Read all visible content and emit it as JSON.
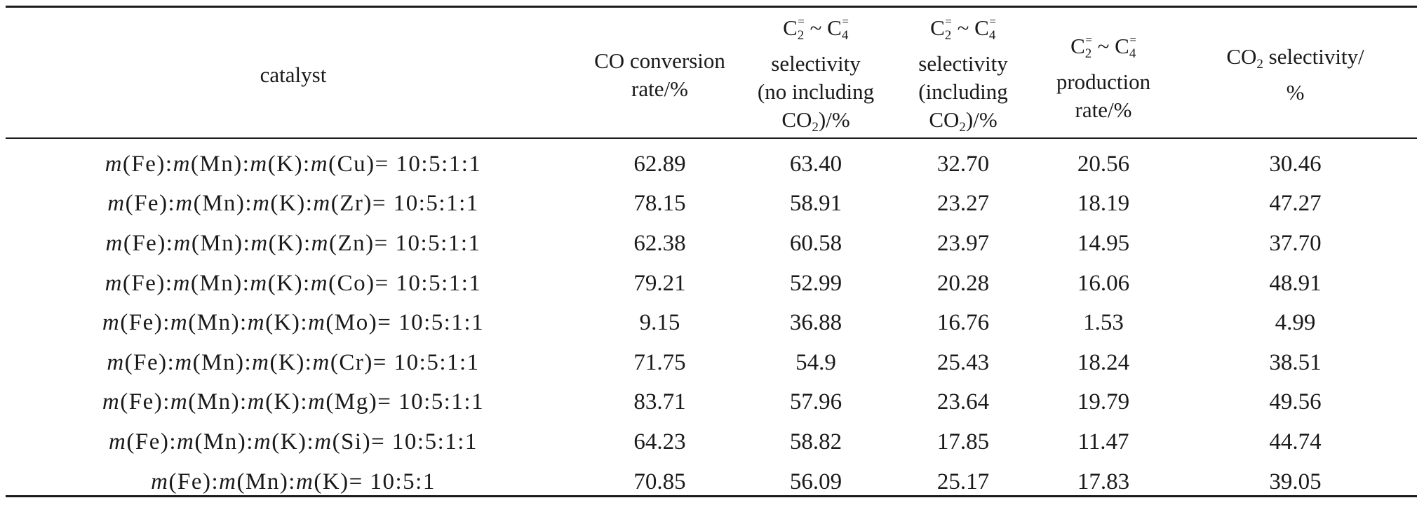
{
  "header": {
    "catalyst": "catalyst",
    "co_conversion": [
      "CO conversion",
      "rate/%"
    ],
    "sel_no_co2": {
      "formula_c2": "C",
      "sub2": "2",
      "sup_eq": "=",
      "tilde": "~",
      "formula_c4": "C",
      "sub4": "4",
      "lines": [
        "selectivity",
        "(no including",
        "CO",
        "2",
        ")/%"
      ]
    },
    "sel_inc_co2": {
      "lines": [
        "selectivity",
        "(including",
        "CO",
        "2",
        ")/%"
      ]
    },
    "production": {
      "lines": [
        "production",
        "rate/%"
      ]
    },
    "co2_sel": [
      "CO",
      "2",
      " selectivity/",
      "%"
    ]
  },
  "rows": [
    {
      "catalyst": [
        "m",
        "(Fe):",
        "m",
        "(Mn):",
        "m",
        "(K):",
        "m",
        "(Cu)= 10:5:1:1"
      ],
      "co_conv": "62.89",
      "sel_no": "63.40",
      "sel_inc": "32.70",
      "prod": "20.56",
      "co2": "30.46"
    },
    {
      "catalyst": [
        "m",
        "(Fe):",
        "m",
        "(Mn):",
        "m",
        "(K):",
        "m",
        "(Zr)= 10:5:1:1"
      ],
      "co_conv": "78.15",
      "sel_no": "58.91",
      "sel_inc": "23.27",
      "prod": "18.19",
      "co2": "47.27"
    },
    {
      "catalyst": [
        "m",
        "(Fe):",
        "m",
        "(Mn):",
        "m",
        "(K):",
        "m",
        "(Zn)= 10:5:1:1"
      ],
      "co_conv": "62.38",
      "sel_no": "60.58",
      "sel_inc": "23.97",
      "prod": "14.95",
      "co2": "37.70"
    },
    {
      "catalyst": [
        "m",
        "(Fe):",
        "m",
        "(Mn):",
        "m",
        "(K):",
        "m",
        "(Co)= 10:5:1:1"
      ],
      "co_conv": "79.21",
      "sel_no": "52.99",
      "sel_inc": "20.28",
      "prod": "16.06",
      "co2": "48.91"
    },
    {
      "catalyst": [
        "m",
        "(Fe):",
        "m",
        "(Mn):",
        "m",
        "(K):",
        "m",
        "(Mo)= 10:5:1:1"
      ],
      "co_conv": "9.15",
      "sel_no": "36.88",
      "sel_inc": "16.76",
      "prod": "1.53",
      "co2": "4.99"
    },
    {
      "catalyst": [
        "m",
        "(Fe):",
        "m",
        "(Mn):",
        "m",
        "(K):",
        "m",
        "(Cr)= 10:5:1:1"
      ],
      "co_conv": "71.75",
      "sel_no": "54.9",
      "sel_inc": "25.43",
      "prod": "18.24",
      "co2": "38.51"
    },
    {
      "catalyst": [
        "m",
        "(Fe):",
        "m",
        "(Mn):",
        "m",
        "(K):",
        "m",
        "(Mg)= 10:5:1:1"
      ],
      "co_conv": "83.71",
      "sel_no": "57.96",
      "sel_inc": "23.64",
      "prod": "19.79",
      "co2": "49.56"
    },
    {
      "catalyst": [
        "m",
        "(Fe):",
        "m",
        "(Mn):",
        "m",
        "(K):",
        "m",
        "(Si)= 10:5:1:1"
      ],
      "co_conv": "64.23",
      "sel_no": "58.82",
      "sel_inc": "17.85",
      "prod": "11.47",
      "co2": "44.74"
    },
    {
      "catalyst": [
        "m",
        "(Fe):",
        "m",
        "(Mn):",
        "m",
        "(K)= 10:5:1"
      ],
      "co_conv": "70.85",
      "sel_no": "56.09",
      "sel_inc": "25.17",
      "prod": "17.83",
      "co2": "39.05"
    }
  ]
}
